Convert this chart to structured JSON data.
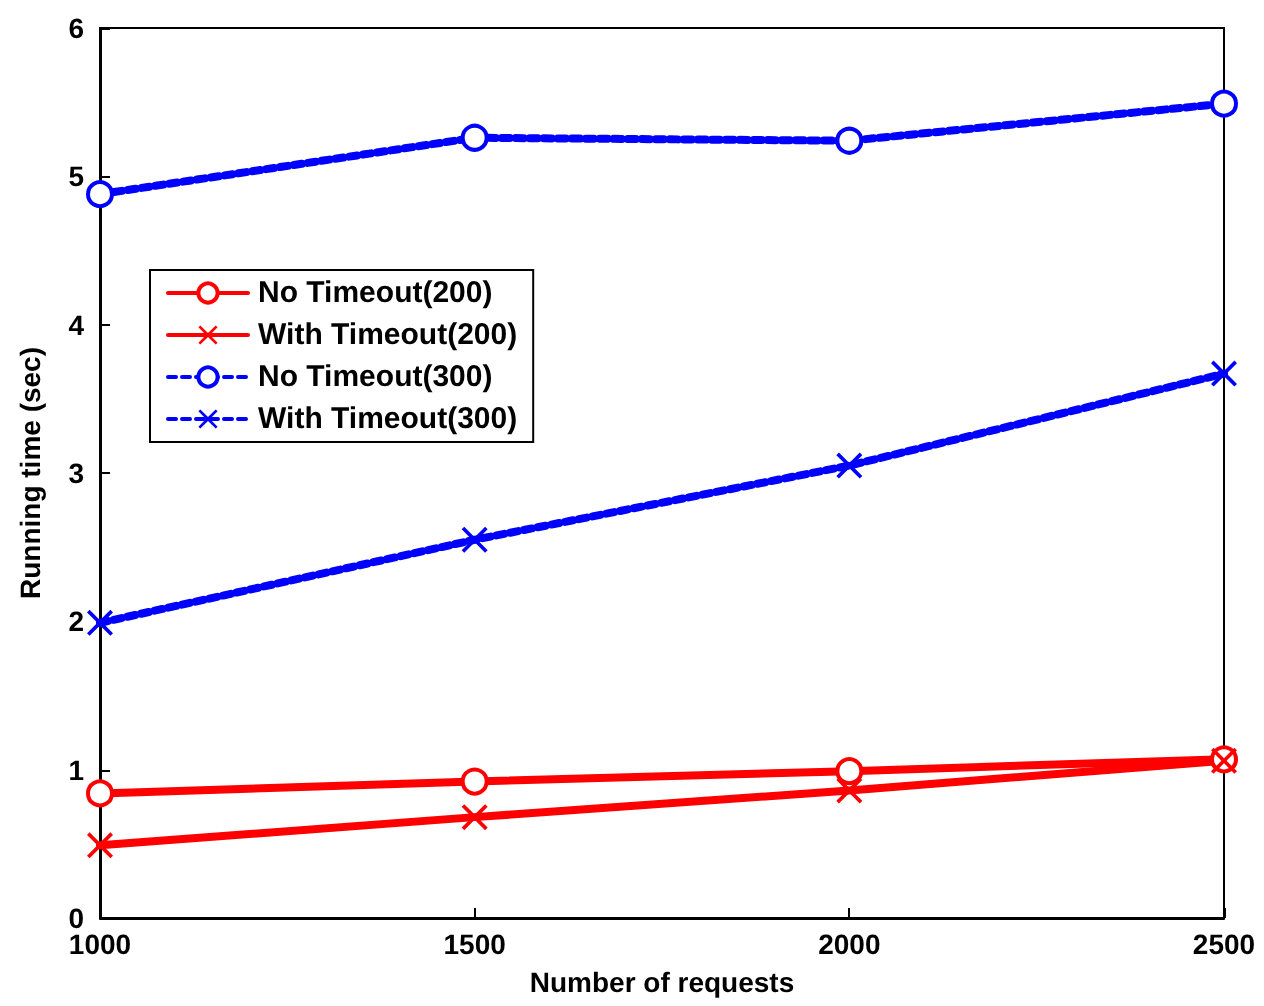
{
  "chart_data": {
    "type": "line",
    "xlabel": "Number of requests",
    "ylabel": "Running time (sec)",
    "x": [
      1000,
      1500,
      2000,
      2500
    ],
    "series": [
      {
        "name": "No Timeout(200)",
        "color": "#ff0000",
        "values": [
          0.84,
          0.92,
          0.99,
          1.07
        ],
        "marker": "circle",
        "line_style": "solid"
      },
      {
        "name": "With Timeout(200)",
        "color": "#ff0000",
        "values": [
          0.49,
          0.68,
          0.86,
          1.06
        ],
        "marker": "cross",
        "line_style": "solid"
      },
      {
        "name": "No Timeout(300)",
        "color": "#0000ff",
        "values": [
          4.88,
          5.26,
          5.24,
          5.49
        ],
        "marker": "circle",
        "line_style": "dashed"
      },
      {
        "name": "With Timeout(300)",
        "color": "#0000ff",
        "values": [
          1.99,
          2.55,
          3.05,
          3.67
        ],
        "marker": "cross",
        "line_style": "dashed"
      }
    ],
    "xlim": [
      1000,
      2500
    ],
    "xticks": [
      1000,
      1500,
      2000,
      2500
    ],
    "ylim": [
      0,
      6
    ],
    "yticks": [
      0,
      1,
      2,
      3,
      4,
      5,
      6
    ],
    "grid": false,
    "legend": "left"
  }
}
